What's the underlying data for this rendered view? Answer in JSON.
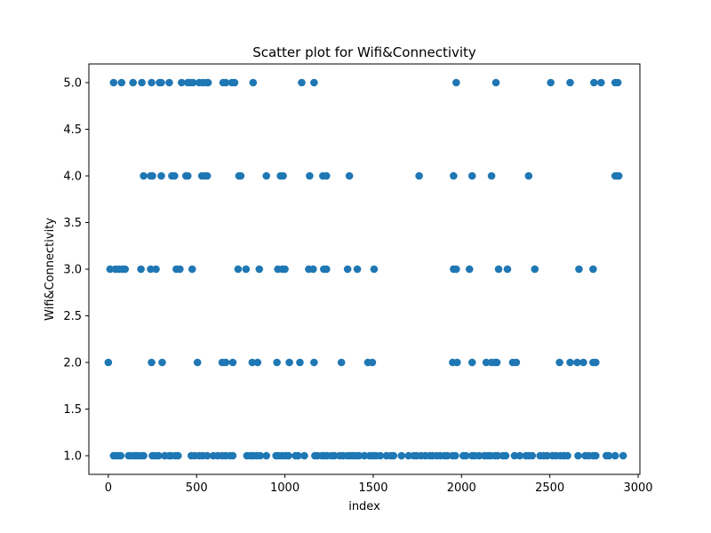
{
  "chart_data": {
    "type": "scatter",
    "title": "Scatter plot for Wifi&Connectivity",
    "xlabel": "index",
    "ylabel": "Wifi&Connectivity",
    "xlim": [
      -110,
      3010
    ],
    "ylim": [
      0.8,
      5.2
    ],
    "x_ticks": [
      0,
      500,
      1000,
      1500,
      2000,
      2500,
      3000
    ],
    "y_ticks": [
      1.0,
      1.5,
      2.0,
      2.5,
      3.0,
      3.5,
      4.0,
      4.5,
      5.0
    ],
    "grid": false,
    "marker_color": "#1f77b4",
    "series": [
      {
        "values": [
          {
            "x": 30,
            "y": 5
          },
          {
            "x": 75,
            "y": 5
          },
          {
            "x": 140,
            "y": 5
          },
          {
            "x": 190,
            "y": 5
          },
          {
            "x": 245,
            "y": 5
          },
          {
            "x": 290,
            "y": 5
          },
          {
            "x": 300,
            "y": 5
          },
          {
            "x": 345,
            "y": 5
          },
          {
            "x": 415,
            "y": 5
          },
          {
            "x": 450,
            "y": 5
          },
          {
            "x": 465,
            "y": 5
          },
          {
            "x": 480,
            "y": 5
          },
          {
            "x": 515,
            "y": 5
          },
          {
            "x": 535,
            "y": 5
          },
          {
            "x": 555,
            "y": 5
          },
          {
            "x": 565,
            "y": 5
          },
          {
            "x": 650,
            "y": 5
          },
          {
            "x": 665,
            "y": 5
          },
          {
            "x": 700,
            "y": 5
          },
          {
            "x": 715,
            "y": 5
          },
          {
            "x": 820,
            "y": 5
          },
          {
            "x": 1095,
            "y": 5
          },
          {
            "x": 1165,
            "y": 5
          },
          {
            "x": 1970,
            "y": 5
          },
          {
            "x": 2195,
            "y": 5
          },
          {
            "x": 2505,
            "y": 5
          },
          {
            "x": 2615,
            "y": 5
          },
          {
            "x": 2750,
            "y": 5
          },
          {
            "x": 2790,
            "y": 5
          },
          {
            "x": 2870,
            "y": 5
          },
          {
            "x": 2885,
            "y": 5
          },
          {
            "x": 200,
            "y": 4
          },
          {
            "x": 240,
            "y": 4
          },
          {
            "x": 250,
            "y": 4
          },
          {
            "x": 300,
            "y": 4
          },
          {
            "x": 360,
            "y": 4
          },
          {
            "x": 375,
            "y": 4
          },
          {
            "x": 440,
            "y": 4
          },
          {
            "x": 450,
            "y": 4
          },
          {
            "x": 530,
            "y": 4
          },
          {
            "x": 545,
            "y": 4
          },
          {
            "x": 560,
            "y": 4
          },
          {
            "x": 740,
            "y": 4
          },
          {
            "x": 750,
            "y": 4
          },
          {
            "x": 895,
            "y": 4
          },
          {
            "x": 975,
            "y": 4
          },
          {
            "x": 990,
            "y": 4
          },
          {
            "x": 1140,
            "y": 4
          },
          {
            "x": 1215,
            "y": 4
          },
          {
            "x": 1235,
            "y": 4
          },
          {
            "x": 1365,
            "y": 4
          },
          {
            "x": 1760,
            "y": 4
          },
          {
            "x": 1955,
            "y": 4
          },
          {
            "x": 2060,
            "y": 4
          },
          {
            "x": 2170,
            "y": 4
          },
          {
            "x": 2380,
            "y": 4
          },
          {
            "x": 2870,
            "y": 4
          },
          {
            "x": 2880,
            "y": 4
          },
          {
            "x": 2890,
            "y": 4
          },
          {
            "x": 10,
            "y": 3
          },
          {
            "x": 40,
            "y": 3
          },
          {
            "x": 60,
            "y": 3
          },
          {
            "x": 80,
            "y": 3
          },
          {
            "x": 95,
            "y": 3
          },
          {
            "x": 185,
            "y": 3
          },
          {
            "x": 240,
            "y": 3
          },
          {
            "x": 270,
            "y": 3
          },
          {
            "x": 385,
            "y": 3
          },
          {
            "x": 405,
            "y": 3
          },
          {
            "x": 475,
            "y": 3
          },
          {
            "x": 735,
            "y": 3
          },
          {
            "x": 780,
            "y": 3
          },
          {
            "x": 855,
            "y": 3
          },
          {
            "x": 960,
            "y": 3
          },
          {
            "x": 985,
            "y": 3
          },
          {
            "x": 1000,
            "y": 3
          },
          {
            "x": 1135,
            "y": 3
          },
          {
            "x": 1160,
            "y": 3
          },
          {
            "x": 1220,
            "y": 3
          },
          {
            "x": 1235,
            "y": 3
          },
          {
            "x": 1355,
            "y": 3
          },
          {
            "x": 1410,
            "y": 3
          },
          {
            "x": 1505,
            "y": 3
          },
          {
            "x": 1955,
            "y": 3
          },
          {
            "x": 1970,
            "y": 3
          },
          {
            "x": 2045,
            "y": 3
          },
          {
            "x": 2210,
            "y": 3
          },
          {
            "x": 2260,
            "y": 3
          },
          {
            "x": 2415,
            "y": 3
          },
          {
            "x": 2665,
            "y": 3
          },
          {
            "x": 2745,
            "y": 3
          },
          {
            "x": 0,
            "y": 2
          },
          {
            "x": 245,
            "y": 2
          },
          {
            "x": 305,
            "y": 2
          },
          {
            "x": 505,
            "y": 2
          },
          {
            "x": 645,
            "y": 2
          },
          {
            "x": 665,
            "y": 2
          },
          {
            "x": 705,
            "y": 2
          },
          {
            "x": 815,
            "y": 2
          },
          {
            "x": 845,
            "y": 2
          },
          {
            "x": 955,
            "y": 2
          },
          {
            "x": 1025,
            "y": 2
          },
          {
            "x": 1085,
            "y": 2
          },
          {
            "x": 1165,
            "y": 2
          },
          {
            "x": 1320,
            "y": 2
          },
          {
            "x": 1470,
            "y": 2
          },
          {
            "x": 1495,
            "y": 2
          },
          {
            "x": 1950,
            "y": 2
          },
          {
            "x": 1975,
            "y": 2
          },
          {
            "x": 2060,
            "y": 2
          },
          {
            "x": 2140,
            "y": 2
          },
          {
            "x": 2170,
            "y": 2
          },
          {
            "x": 2190,
            "y": 2
          },
          {
            "x": 2200,
            "y": 2
          },
          {
            "x": 2290,
            "y": 2
          },
          {
            "x": 2310,
            "y": 2
          },
          {
            "x": 2555,
            "y": 2
          },
          {
            "x": 2615,
            "y": 2
          },
          {
            "x": 2655,
            "y": 2
          },
          {
            "x": 2690,
            "y": 2
          },
          {
            "x": 2745,
            "y": 2
          },
          {
            "x": 2760,
            "y": 2
          },
          {
            "x": 30,
            "y": 1
          },
          {
            "x": 45,
            "y": 1
          },
          {
            "x": 60,
            "y": 1
          },
          {
            "x": 70,
            "y": 1
          },
          {
            "x": 115,
            "y": 1
          },
          {
            "x": 130,
            "y": 1
          },
          {
            "x": 150,
            "y": 1
          },
          {
            "x": 165,
            "y": 1
          },
          {
            "x": 185,
            "y": 1
          },
          {
            "x": 200,
            "y": 1
          },
          {
            "x": 250,
            "y": 1
          },
          {
            "x": 265,
            "y": 1
          },
          {
            "x": 285,
            "y": 1
          },
          {
            "x": 320,
            "y": 1
          },
          {
            "x": 345,
            "y": 1
          },
          {
            "x": 355,
            "y": 1
          },
          {
            "x": 380,
            "y": 1
          },
          {
            "x": 395,
            "y": 1
          },
          {
            "x": 470,
            "y": 1
          },
          {
            "x": 490,
            "y": 1
          },
          {
            "x": 515,
            "y": 1
          },
          {
            "x": 535,
            "y": 1
          },
          {
            "x": 560,
            "y": 1
          },
          {
            "x": 595,
            "y": 1
          },
          {
            "x": 620,
            "y": 1
          },
          {
            "x": 645,
            "y": 1
          },
          {
            "x": 665,
            "y": 1
          },
          {
            "x": 690,
            "y": 1
          },
          {
            "x": 705,
            "y": 1
          },
          {
            "x": 785,
            "y": 1
          },
          {
            "x": 805,
            "y": 1
          },
          {
            "x": 820,
            "y": 1
          },
          {
            "x": 840,
            "y": 1
          },
          {
            "x": 860,
            "y": 1
          },
          {
            "x": 895,
            "y": 1
          },
          {
            "x": 950,
            "y": 1
          },
          {
            "x": 965,
            "y": 1
          },
          {
            "x": 985,
            "y": 1
          },
          {
            "x": 1005,
            "y": 1
          },
          {
            "x": 1020,
            "y": 1
          },
          {
            "x": 1060,
            "y": 1
          },
          {
            "x": 1075,
            "y": 1
          },
          {
            "x": 1110,
            "y": 1
          },
          {
            "x": 1170,
            "y": 1
          },
          {
            "x": 1185,
            "y": 1
          },
          {
            "x": 1210,
            "y": 1
          },
          {
            "x": 1225,
            "y": 1
          },
          {
            "x": 1240,
            "y": 1
          },
          {
            "x": 1265,
            "y": 1
          },
          {
            "x": 1280,
            "y": 1
          },
          {
            "x": 1310,
            "y": 1
          },
          {
            "x": 1330,
            "y": 1
          },
          {
            "x": 1355,
            "y": 1
          },
          {
            "x": 1370,
            "y": 1
          },
          {
            "x": 1385,
            "y": 1
          },
          {
            "x": 1400,
            "y": 1
          },
          {
            "x": 1420,
            "y": 1
          },
          {
            "x": 1450,
            "y": 1
          },
          {
            "x": 1480,
            "y": 1
          },
          {
            "x": 1500,
            "y": 1
          },
          {
            "x": 1515,
            "y": 1
          },
          {
            "x": 1540,
            "y": 1
          },
          {
            "x": 1575,
            "y": 1
          },
          {
            "x": 1600,
            "y": 1
          },
          {
            "x": 1615,
            "y": 1
          },
          {
            "x": 1660,
            "y": 1
          },
          {
            "x": 1700,
            "y": 1
          },
          {
            "x": 1730,
            "y": 1
          },
          {
            "x": 1745,
            "y": 1
          },
          {
            "x": 1770,
            "y": 1
          },
          {
            "x": 1795,
            "y": 1
          },
          {
            "x": 1820,
            "y": 1
          },
          {
            "x": 1835,
            "y": 1
          },
          {
            "x": 1860,
            "y": 1
          },
          {
            "x": 1880,
            "y": 1
          },
          {
            "x": 1905,
            "y": 1
          },
          {
            "x": 1920,
            "y": 1
          },
          {
            "x": 1950,
            "y": 1
          },
          {
            "x": 1965,
            "y": 1
          },
          {
            "x": 2010,
            "y": 1
          },
          {
            "x": 2025,
            "y": 1
          },
          {
            "x": 2060,
            "y": 1
          },
          {
            "x": 2075,
            "y": 1
          },
          {
            "x": 2100,
            "y": 1
          },
          {
            "x": 2130,
            "y": 1
          },
          {
            "x": 2150,
            "y": 1
          },
          {
            "x": 2165,
            "y": 1
          },
          {
            "x": 2190,
            "y": 1
          },
          {
            "x": 2205,
            "y": 1
          },
          {
            "x": 2235,
            "y": 1
          },
          {
            "x": 2250,
            "y": 1
          },
          {
            "x": 2300,
            "y": 1
          },
          {
            "x": 2330,
            "y": 1
          },
          {
            "x": 2365,
            "y": 1
          },
          {
            "x": 2380,
            "y": 1
          },
          {
            "x": 2400,
            "y": 1
          },
          {
            "x": 2445,
            "y": 1
          },
          {
            "x": 2465,
            "y": 1
          },
          {
            "x": 2485,
            "y": 1
          },
          {
            "x": 2515,
            "y": 1
          },
          {
            "x": 2535,
            "y": 1
          },
          {
            "x": 2560,
            "y": 1
          },
          {
            "x": 2580,
            "y": 1
          },
          {
            "x": 2600,
            "y": 1
          },
          {
            "x": 2660,
            "y": 1
          },
          {
            "x": 2700,
            "y": 1
          },
          {
            "x": 2720,
            "y": 1
          },
          {
            "x": 2745,
            "y": 1
          },
          {
            "x": 2760,
            "y": 1
          },
          {
            "x": 2820,
            "y": 1
          },
          {
            "x": 2835,
            "y": 1
          },
          {
            "x": 2870,
            "y": 1
          },
          {
            "x": 2915,
            "y": 1
          }
        ]
      }
    ]
  }
}
